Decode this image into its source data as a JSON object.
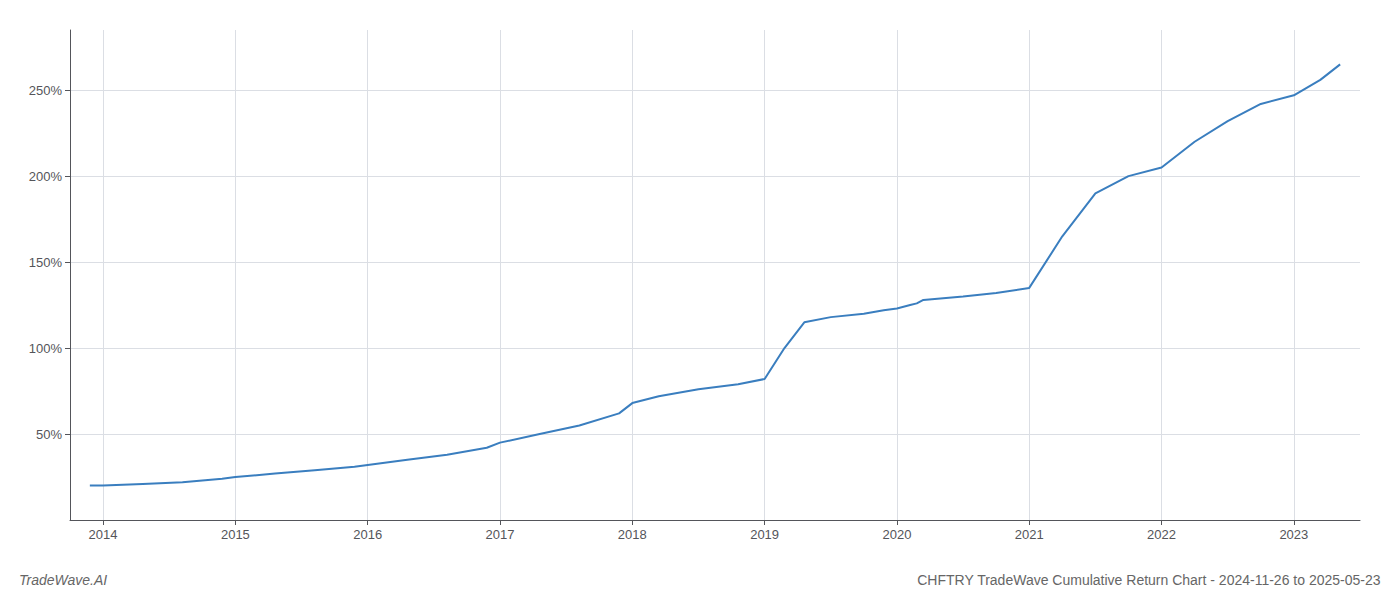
{
  "chart_data": {
    "type": "line",
    "title": "CHFTRY TradeWave Cumulative Return Chart - 2024-11-26 to 2025-05-23",
    "annotations": [
      "TradeWave.AI"
    ],
    "color": "#3a7ebf",
    "x": [
      2013.9,
      2014.0,
      2014.3,
      2014.6,
      2014.9,
      2015.0,
      2015.3,
      2015.6,
      2015.9,
      2016.0,
      2016.3,
      2016.6,
      2016.9,
      2017.0,
      2017.3,
      2017.6,
      2017.9,
      2018.0,
      2018.2,
      2018.5,
      2018.8,
      2019.0,
      2019.15,
      2019.3,
      2019.5,
      2019.75,
      2019.9,
      2020.0,
      2020.05,
      2020.1,
      2020.15,
      2020.2,
      2020.5,
      2020.75,
      2021.0,
      2021.25,
      2021.5,
      2021.75,
      2022.0,
      2022.25,
      2022.5,
      2022.75,
      2023.0,
      2023.2,
      2023.35
    ],
    "values": [
      20,
      20,
      21,
      22,
      24,
      25,
      27,
      29,
      31,
      32,
      35,
      38,
      42,
      45,
      50,
      55,
      62,
      68,
      72,
      76,
      79,
      82,
      100,
      115,
      118,
      120,
      122,
      123,
      124,
      125,
      126,
      128,
      130,
      132,
      135,
      165,
      190,
      200,
      205,
      220,
      232,
      242,
      247,
      256,
      265
    ],
    "xlim": [
      2013.75,
      2023.5
    ],
    "xticks": [
      2014,
      2015,
      2016,
      2017,
      2018,
      2019,
      2020,
      2021,
      2022,
      2023
    ],
    "ylim": [
      0,
      285
    ],
    "yticks": [
      {
        "value": 50,
        "label": "50%"
      },
      {
        "value": 100,
        "label": "100%"
      },
      {
        "value": 150,
        "label": "150%"
      },
      {
        "value": 200,
        "label": "200%"
      },
      {
        "value": 250,
        "label": "250%"
      }
    ],
    "grid": true
  }
}
